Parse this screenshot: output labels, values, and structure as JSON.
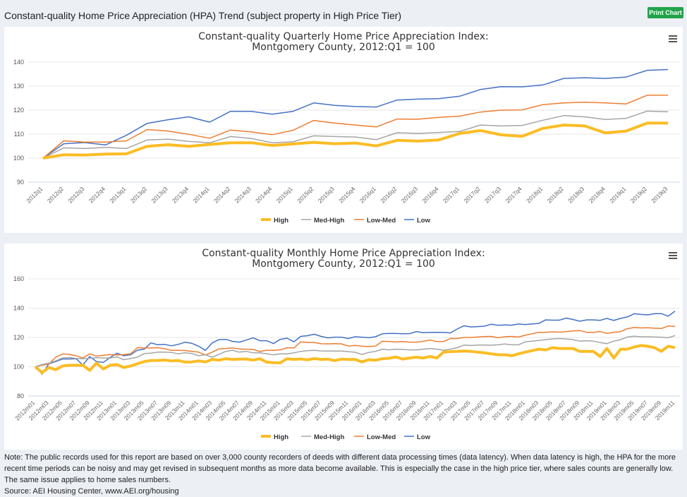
{
  "header": {
    "title": "Constant-quality Home Price Appreciation (HPA) Trend (subject property in High Price Tier)",
    "print_label": "Print Chart"
  },
  "note": "Note: The public records used for this report are based on over 3,000 county recorders of deeds with different data processing times (data latency). When data latency is high, the HPA for the more recent time periods can be noisy and may get revised in subsequent months as more data become available. This is especially the case in the high price tier, where sales counts are generally low. The same issue applies to home sales numbers.",
  "source": "Source: AEI Housing Center, www.AEI.org/housing",
  "colors": {
    "High": "#fbbc24",
    "Med-High": "#a5a5a5",
    "Low-Med": "#ed7d31",
    "Low": "#4472c4"
  },
  "chart_data": [
    {
      "type": "line",
      "title": [
        "Constant-quality Quarterly Home Price Appreciation Index:",
        "Montgomery County, 2012:Q1 = 100"
      ],
      "ylim": [
        90,
        140
      ],
      "yticks": [
        90,
        100,
        110,
        120,
        130,
        140
      ],
      "grid": true,
      "legend": "bottom",
      "label_every": 1,
      "categories": [
        "2012q1",
        "2012q2",
        "2012q3",
        "2012q4",
        "2013q1",
        "2013q2",
        "2013q3",
        "2013q4",
        "2014q1",
        "2014q2",
        "2014q3",
        "2014q4",
        "2015q1",
        "2015q2",
        "2015q3",
        "2015q4",
        "2016q1",
        "2016q2",
        "2016q3",
        "2016q4",
        "2017q1",
        "2017q2",
        "2017q3",
        "2017q4",
        "2018q1",
        "2018q2",
        "2018q3",
        "2018q4",
        "2019q1",
        "2019q2",
        "2019q3"
      ],
      "series": [
        {
          "name": "High",
          "values": [
            100,
            101.4,
            101.3,
            101.7,
            101.8,
            104.9,
            105.6,
            104.9,
            105.7,
            106.4,
            106.4,
            105.3,
            105.9,
            106.6,
            106,
            106.3,
            105.1,
            107.4,
            107.1,
            107.6,
            110.3,
            111.5,
            109.7,
            109.1,
            112.4,
            113.8,
            113.4,
            110.5,
            111.3,
            114.6,
            114.6
          ]
        },
        {
          "name": "Med-High",
          "values": [
            100,
            104.3,
            104,
            104.5,
            104,
            107.6,
            107.9,
            107,
            106.4,
            109,
            108.2,
            106.4,
            106.8,
            109.3,
            109,
            108.8,
            107.7,
            110.6,
            110.3,
            110.7,
            111.1,
            113.8,
            113.4,
            113.6,
            115.8,
            117.7,
            117.2,
            116.1,
            116.6,
            119.6,
            119.3
          ]
        },
        {
          "name": "Low-Med",
          "values": [
            100,
            107.2,
            106.7,
            106.7,
            107.2,
            111.9,
            111.3,
            109.9,
            108.3,
            111.7,
            110.9,
            109.8,
            111.6,
            115.7,
            114.6,
            113.8,
            113,
            116.3,
            116.2,
            117,
            117.5,
            119.2,
            120,
            120.1,
            122.3,
            123,
            123.3,
            123,
            122.6,
            126.2,
            126.2
          ]
        },
        {
          "name": "Low",
          "values": [
            100,
            106,
            106.5,
            105.5,
            109.5,
            114.5,
            116,
            117.2,
            115,
            119.5,
            119.5,
            118.3,
            119.5,
            123,
            122,
            121.5,
            121.3,
            124.2,
            124.6,
            124.8,
            125.8,
            128.6,
            129.8,
            129.7,
            130.5,
            133.2,
            133.5,
            133.2,
            133.8,
            136.6,
            136.9
          ]
        }
      ]
    },
    {
      "type": "line",
      "title": [
        "Constant-quality Monthly Home Price Appreciation Index:",
        "Montgomery County, 2012:Q1 = 100"
      ],
      "ylim": [
        80,
        160
      ],
      "yticks": [
        80,
        100,
        120,
        140,
        160
      ],
      "grid": true,
      "legend": "bottom",
      "label_every": 2,
      "categories": [
        "2012m01",
        "2012m02",
        "2012m03",
        "2012m04",
        "2012m05",
        "2012m06",
        "2012m07",
        "2012m08",
        "2012m09",
        "2012m10",
        "2012m11",
        "2012m12",
        "2013m01",
        "2013m02",
        "2013m03",
        "2013m04",
        "2013m05",
        "2013m06",
        "2013m07",
        "2013m08",
        "2013m09",
        "2013m10",
        "2013m11",
        "2013m12",
        "2014m01",
        "2014m02",
        "2014m03",
        "2014m04",
        "2014m05",
        "2014m06",
        "2014m07",
        "2014m08",
        "2014m09",
        "2014m10",
        "2014m11",
        "2014m12",
        "2015m01",
        "2015m02",
        "2015m03",
        "2015m04",
        "2015m05",
        "2015m06",
        "2015m07",
        "2015m08",
        "2015m09",
        "2015m10",
        "2015m11",
        "2015m12",
        "2016m01",
        "2016m02",
        "2016m03",
        "2016m04",
        "2016m05",
        "2016m06",
        "2016m07",
        "2016m08",
        "2016m09",
        "2016m10",
        "2016m11",
        "2016m12",
        "2017m01",
        "2017m02",
        "2017m03",
        "2017m04",
        "2017m05",
        "2017m06",
        "2017m07",
        "2017m08",
        "2017m09",
        "2017m10",
        "2017m11",
        "2017m12",
        "2018m01",
        "2018m02",
        "2018m03",
        "2018m04",
        "2018m05",
        "2018m06",
        "2018m07",
        "2018m08",
        "2018m09",
        "2018m10",
        "2018m11",
        "2018m12",
        "2019m01",
        "2019m02",
        "2019m03",
        "2019m04",
        "2019m05",
        "2019m06",
        "2019m07",
        "2019m08",
        "2019m09",
        "2019m10",
        "2019m11"
      ],
      "series": [
        {
          "name": "High",
          "values": [
            100,
            96,
            99.5,
            98,
            100.5,
            101,
            101,
            101,
            97.5,
            102.5,
            98.5,
            101,
            101.5,
            99.5,
            100.5,
            102,
            103.5,
            104.3,
            104.3,
            104.6,
            104,
            104.3,
            103.2,
            103.3,
            104,
            103.3,
            105,
            104.5,
            105.5,
            105,
            105.2,
            105.3,
            104.5,
            105.5,
            103.2,
            102.8,
            102.7,
            105.5,
            105,
            105.3,
            104.7,
            105.6,
            105,
            105.2,
            104.2,
            105.2,
            104.9,
            105,
            103.3,
            104.8,
            104.5,
            105.5,
            105.8,
            106.7,
            105.2,
            106,
            106.5,
            106,
            107,
            106,
            110,
            110.3,
            110.5,
            110.7,
            110.5,
            110,
            109.5,
            108.8,
            108.2,
            108.2,
            107.5,
            108.8,
            110,
            111,
            112,
            111.5,
            113,
            112.5,
            112.5,
            112.5,
            110.5,
            110.5,
            110.5,
            107,
            112.5,
            106,
            112,
            112,
            113.5,
            114.5,
            114,
            113,
            110.5,
            114,
            113
          ]
        },
        {
          "name": "Med-High",
          "values": [
            100,
            101.5,
            102.5,
            104,
            106,
            106.3,
            105.7,
            105.5,
            105.8,
            106.2,
            106,
            106,
            106.8,
            104.8,
            105.6,
            106.5,
            109,
            109.3,
            110,
            110,
            109.8,
            108.8,
            109.5,
            109,
            107.5,
            108.2,
            106.5,
            108.5,
            110.5,
            111.3,
            110,
            110.5,
            109.5,
            109.5,
            108.8,
            108.2,
            108.8,
            108.8,
            109.5,
            110.5,
            111,
            111.2,
            110.8,
            110.7,
            110.7,
            110.7,
            110.3,
            109.9,
            108.4,
            109.8,
            110.5,
            112,
            111.5,
            112,
            111.8,
            111.5,
            111.5,
            112,
            112.5,
            112,
            111.3,
            112,
            113,
            114.8,
            114.5,
            114.8,
            114.8,
            114.7,
            115,
            115.5,
            115,
            115,
            117,
            117.5,
            118,
            118.5,
            119,
            119.3,
            119,
            118.5,
            117.5,
            117.8,
            117.5,
            116.5,
            115.8,
            117.5,
            118.5,
            120.3,
            120.8,
            120.5,
            120.5,
            120.3,
            120.2,
            119.8,
            121.3
          ]
        },
        {
          "name": "Low-Med",
          "values": [
            100,
            101,
            101.8,
            106.5,
            108.7,
            108.5,
            107.5,
            106,
            108.8,
            107.3,
            107.8,
            108.3,
            108,
            108.3,
            108.8,
            113,
            112.8,
            112.8,
            113,
            112.3,
            111.2,
            111.2,
            111.1,
            110.5,
            110,
            108,
            110,
            112.2,
            112.5,
            112.8,
            112.2,
            112,
            111.8,
            110.4,
            111.3,
            111.2,
            111.5,
            113,
            112.8,
            117,
            116.6,
            116.6,
            115.7,
            115.6,
            115.8,
            115.6,
            114.1,
            114.6,
            114,
            113.8,
            114.1,
            117.4,
            117.2,
            116.9,
            117.2,
            116.8,
            116.7,
            117.4,
            118.2,
            117.2,
            117.2,
            119.3,
            119.3,
            120,
            120,
            120.3,
            120.6,
            120.7,
            119.8,
            120.5,
            120.7,
            120.3,
            121.5,
            122.5,
            123.5,
            123.5,
            123.8,
            123.6,
            124,
            124.5,
            124.7,
            123.5,
            123.5,
            124,
            122.8,
            123.5,
            124,
            126,
            126.8,
            126.5,
            126.6,
            126.3,
            126.1,
            127.8,
            127.6
          ]
        },
        {
          "name": "Low",
          "values": [
            100,
            95,
            102,
            103.5,
            105.3,
            105.3,
            105.5,
            101.2,
            107,
            103.5,
            103,
            106.3,
            109.3,
            107.5,
            108.2,
            111.3,
            112,
            116.3,
            115,
            115.3,
            114.3,
            115.3,
            116.7,
            116,
            114,
            111.2,
            116.3,
            118.5,
            118.7,
            117.3,
            116.8,
            118.2,
            119.8,
            117.8,
            117.8,
            115.8,
            118.7,
            119.5,
            117,
            120.7,
            121.2,
            122.2,
            120.7,
            119.7,
            120.2,
            120.2,
            119.3,
            120.5,
            120.2,
            119.8,
            120.5,
            122.5,
            122.8,
            122.7,
            122.5,
            122.6,
            124,
            123.3,
            123.4,
            123.5,
            123.4,
            123.1,
            125.8,
            128,
            127.2,
            127.4,
            127.7,
            129,
            128.3,
            128.6,
            128.4,
            129.2,
            128.8,
            129.2,
            129.6,
            132,
            131.8,
            131.8,
            133.2,
            132.3,
            131.1,
            132,
            132,
            131.7,
            133,
            131.6,
            133,
            134,
            136.2,
            135.7,
            135.4,
            136.2,
            136.3,
            134.5,
            138
          ]
        }
      ]
    }
  ]
}
